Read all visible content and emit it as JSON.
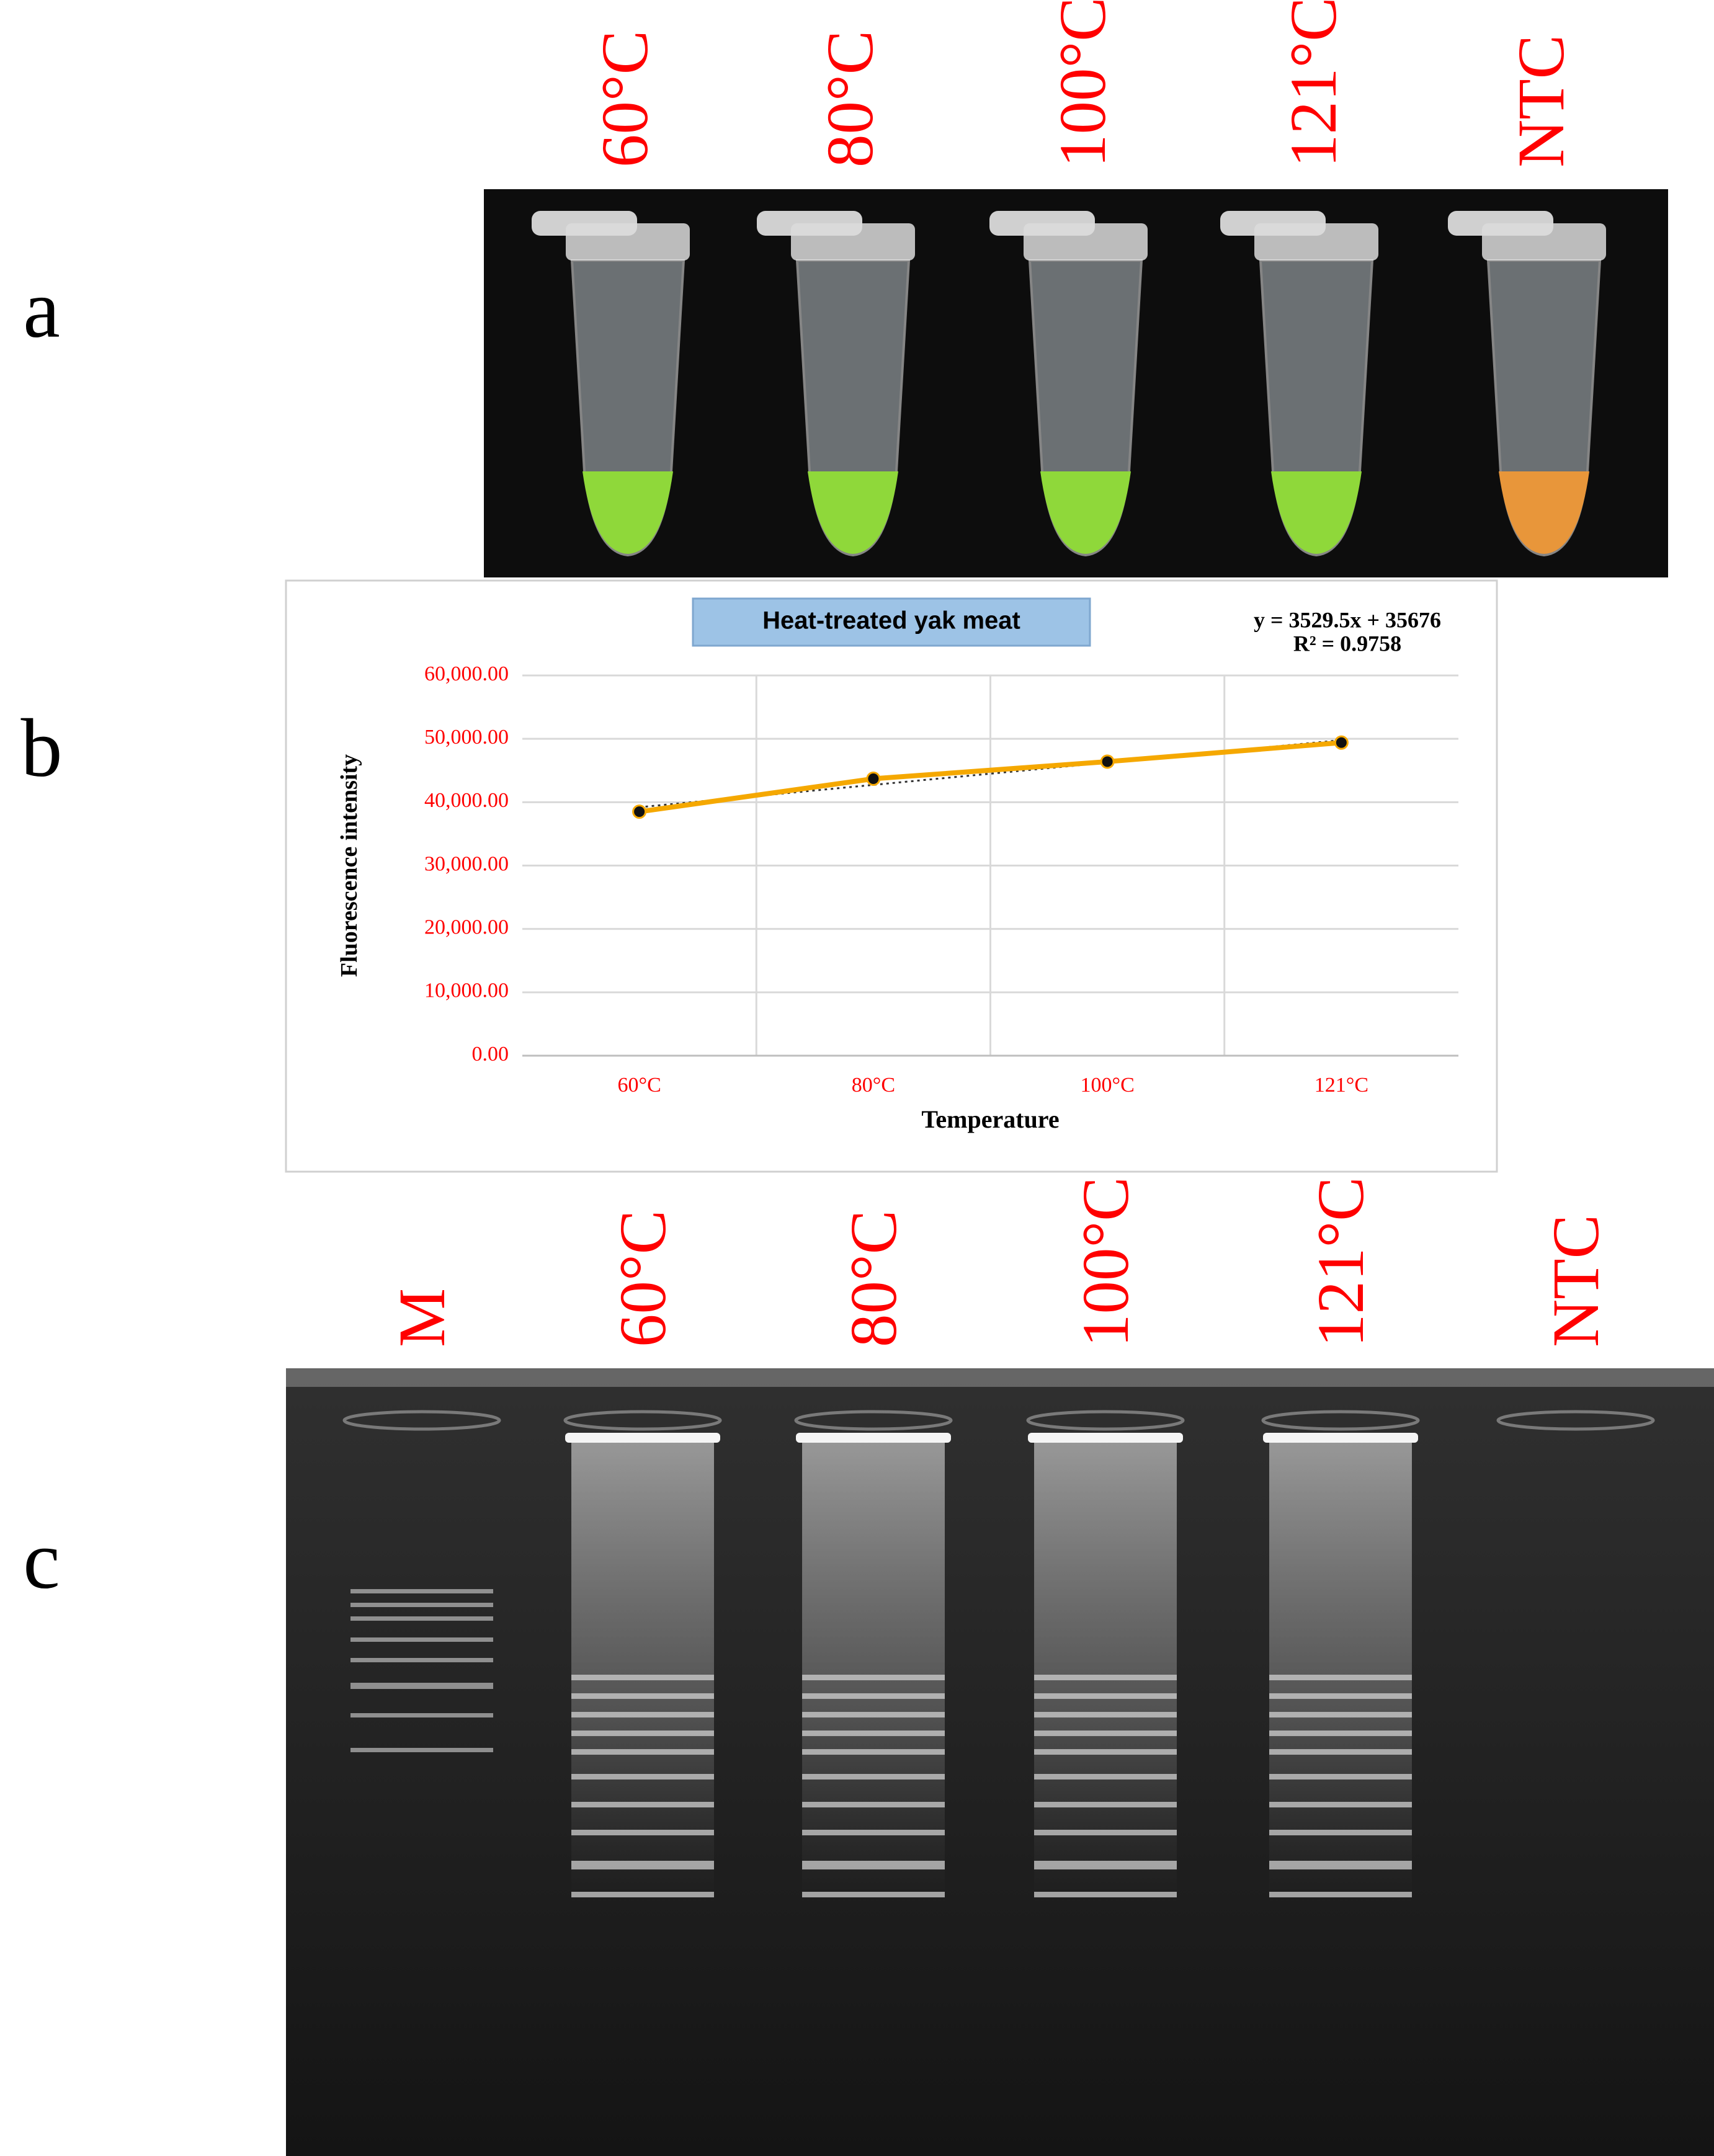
{
  "panel_labels": [
    "a",
    "b",
    "c"
  ],
  "tube_labels": [
    "60°C",
    "80°C",
    "100°C",
    "121°C",
    "NTC"
  ],
  "gel_lane_labels": [
    "M",
    "60°C",
    "80°C",
    "100°C",
    "121°C",
    "NTC"
  ],
  "chart_data": {
    "type": "line",
    "title": "Heat-treated yak meat",
    "x_label": "Temperature",
    "y_label": "Fluorescence intensity",
    "categories": [
      "60°C",
      "80°C",
      "100°C",
      "121°C"
    ],
    "series": [
      {
        "name": "Fluorescence intensity",
        "color": "#f5a800",
        "values": [
          38500,
          43700,
          46400,
          49400
        ]
      }
    ],
    "trendline": {
      "slope": 3529.5,
      "intercept": 35676,
      "equation": "y = 3529.5x + 35676",
      "r2_label": "R² = 0.9758"
    },
    "ylim": [
      0,
      60000
    ],
    "yticks": [
      {
        "value": 0,
        "label": "0.00"
      },
      {
        "value": 10000,
        "label": "10,000.00"
      },
      {
        "value": 20000,
        "label": "20,000.00"
      },
      {
        "value": 30000,
        "label": "30,000.00"
      },
      {
        "value": 40000,
        "label": "40,000.00"
      },
      {
        "value": 50000,
        "label": "50,000.00"
      },
      {
        "value": 60000,
        "label": "60,000.00"
      }
    ],
    "grid": true
  }
}
